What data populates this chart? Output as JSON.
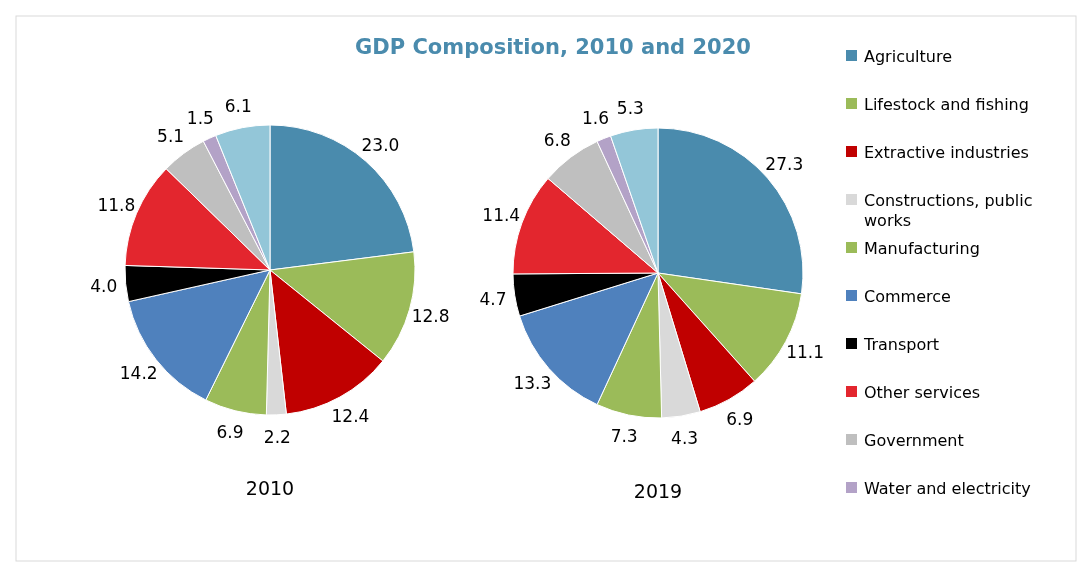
{
  "chart_data": [
    {
      "type": "pie",
      "title": "GDP Composition, 2010 and 2020",
      "xlabel": "2010",
      "legend": "right",
      "categories": [
        "Agriculture",
        "Lifestock and fishing",
        "Extractive industries",
        "Constructions, public works",
        "Manufacturing",
        "Commerce",
        "Transport",
        "Other services",
        "Government",
        "Water and electricity",
        null
      ],
      "values": [
        23.0,
        12.8,
        12.4,
        2.2,
        6.9,
        14.2,
        4.0,
        11.8,
        5.1,
        1.5,
        6.1
      ],
      "value_labels": [
        "23.0",
        "12.8",
        "12.4",
        "2.2",
        "6.9",
        "14.2",
        "4.0",
        "11.8",
        "5.1",
        "1.5",
        "6.1"
      ],
      "colors": [
        "#4a8bad",
        "#9bbb59",
        "#c00000",
        "#d9d9d9",
        "#9bbb59",
        "#4f81bd",
        "#000000",
        "#e3262e",
        "#bfbfbf",
        "#b3a2c7",
        "#93c6d8"
      ]
    },
    {
      "type": "pie",
      "xlabel": "2019",
      "categories": [
        null,
        null,
        null,
        null,
        null,
        null,
        null,
        null,
        null,
        null,
        null
      ],
      "values": [
        27.3,
        11.1,
        6.9,
        4.3,
        7.3,
        13.3,
        4.7,
        11.4,
        6.8,
        1.6,
        5.3
      ],
      "value_labels": [
        "27.3",
        "11.1",
        "6.9",
        "4.3",
        "7.3",
        "13.3",
        "4.7",
        "11.4",
        "6.8",
        "1.6",
        "5.3"
      ],
      "colors": [
        "#4a8bad",
        "#9bbb59",
        "#c00000",
        "#d9d9d9",
        "#9bbb59",
        "#4f81bd",
        "#000000",
        "#e3262e",
        "#bfbfbf",
        "#b3a2c7",
        "#93c6d8"
      ]
    }
  ]
}
